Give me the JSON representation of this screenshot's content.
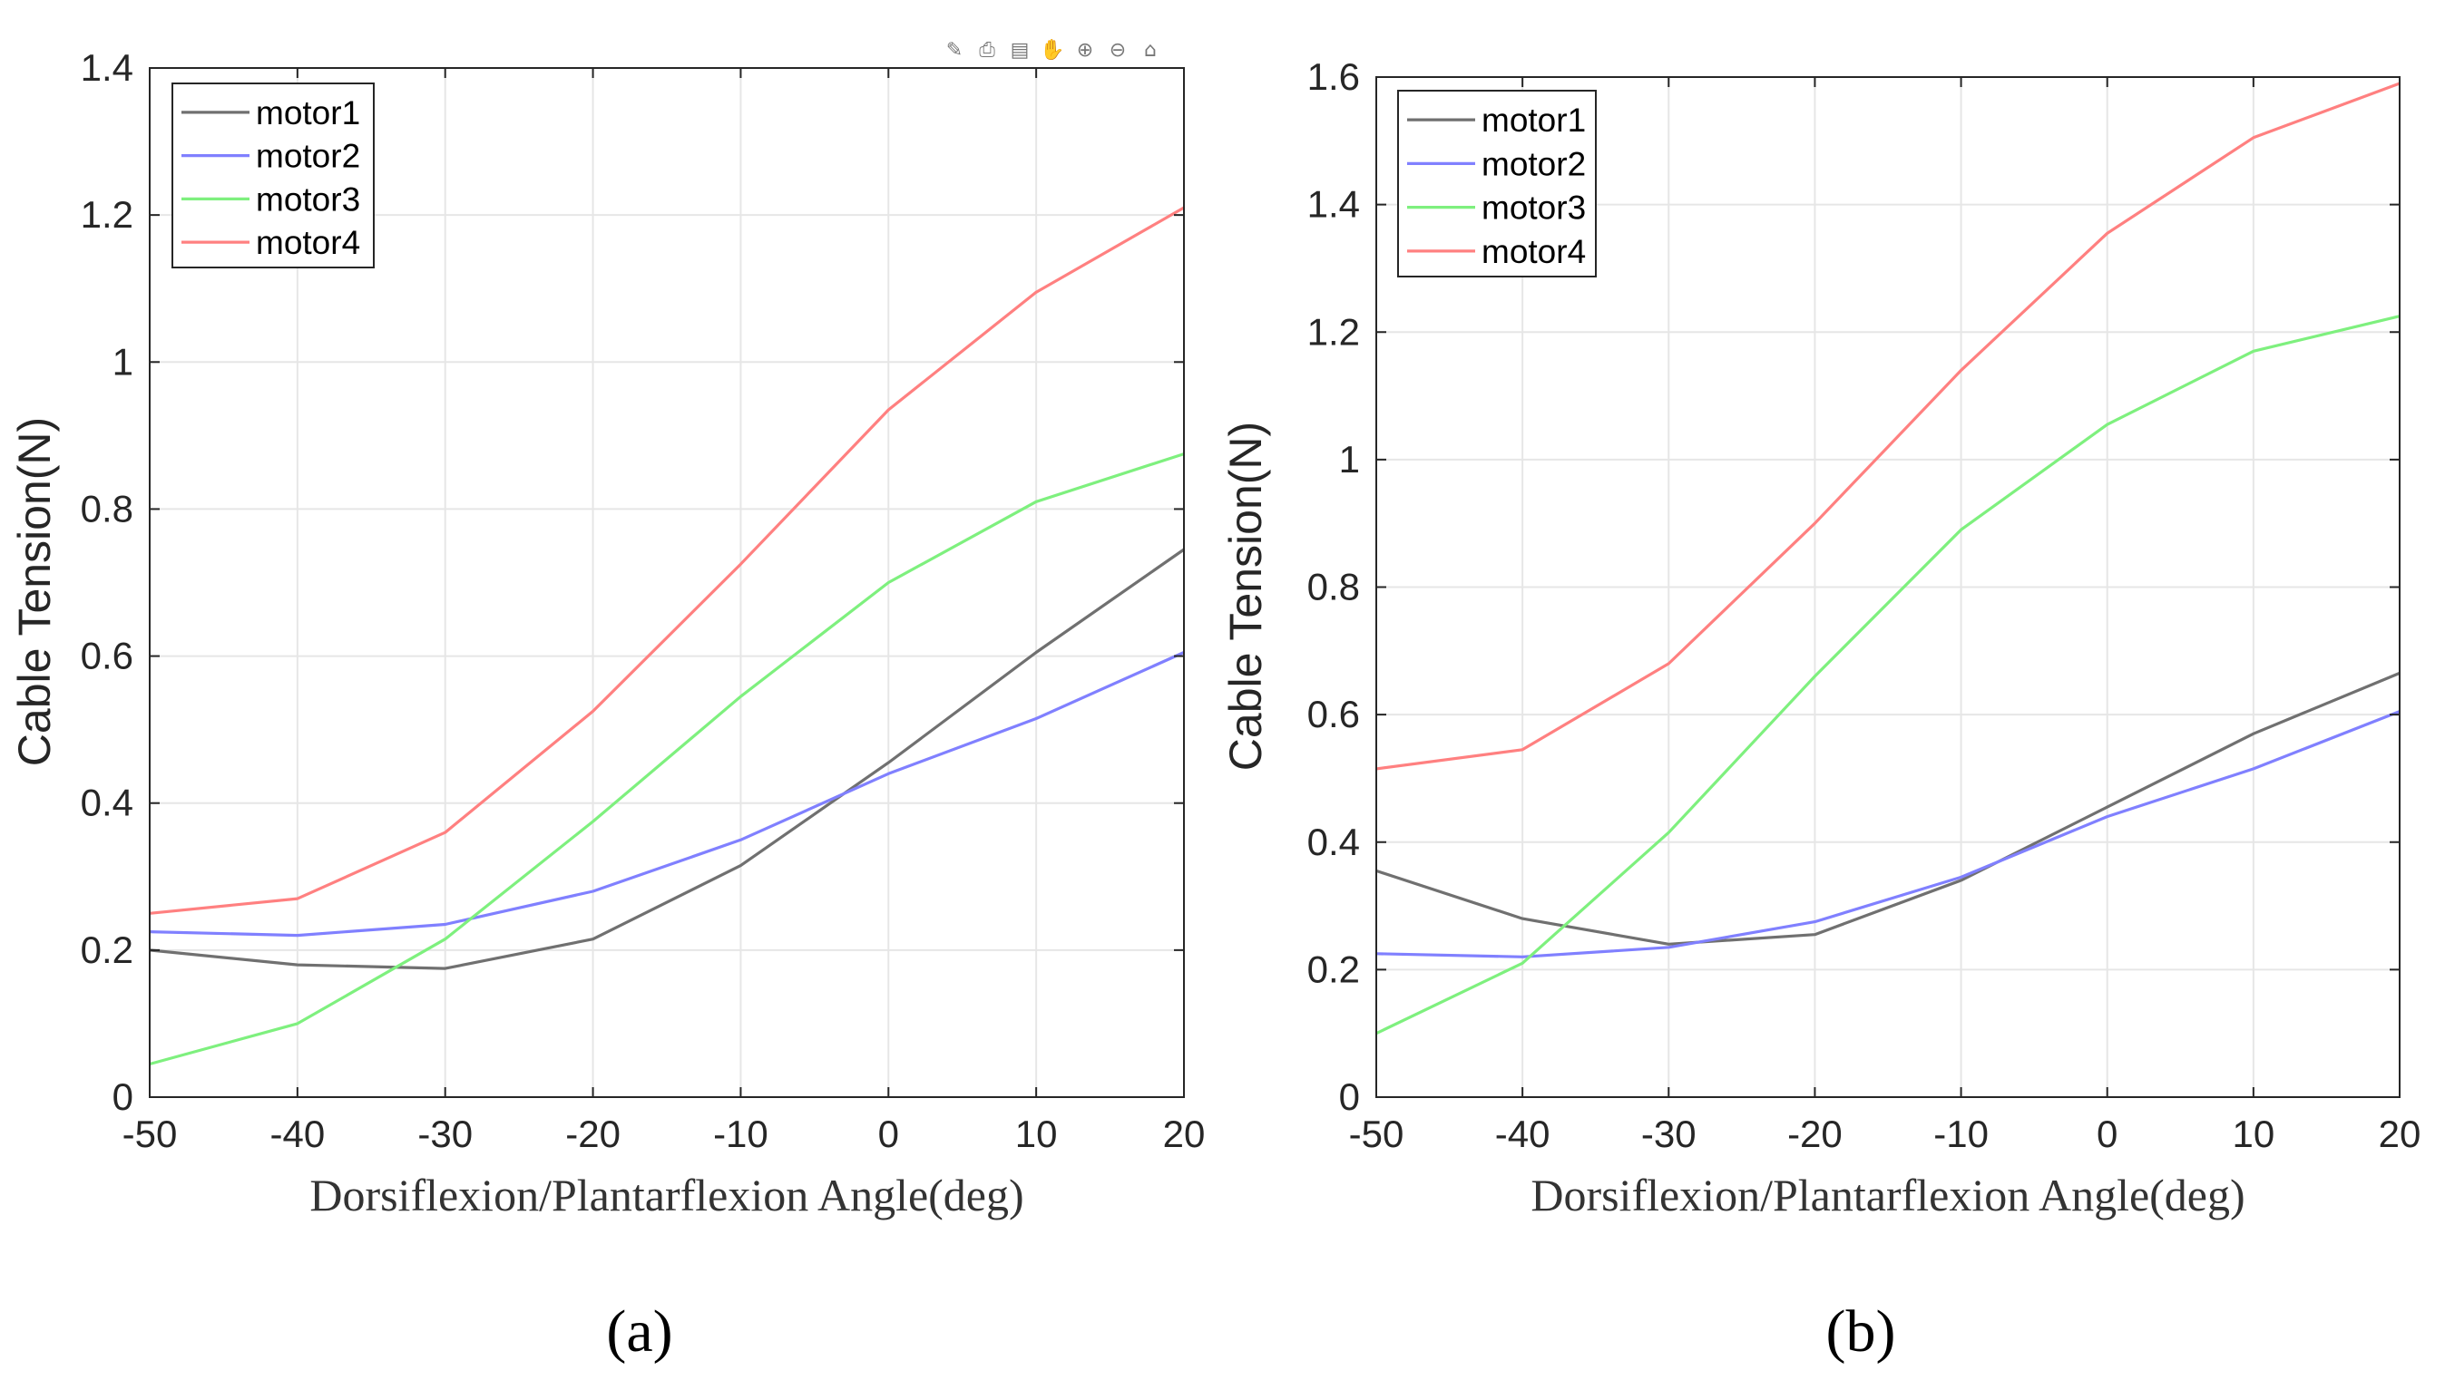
{
  "chart_data": [
    {
      "type": "line",
      "panel_label": "(a)",
      "xlabel": "Dorsiflexion/Plantarflexion Angle(deg)",
      "ylabel": "Cable Tension(N)",
      "x": [
        -50,
        -40,
        -30,
        -20,
        -10,
        0,
        10,
        20
      ],
      "xlim": [
        -50,
        20
      ],
      "ylim": [
        0,
        1.4
      ],
      "xticks": [
        -50,
        -40,
        -30,
        -20,
        -10,
        0,
        10,
        20
      ],
      "xtick_labels": [
        "-50",
        "-40",
        "-30",
        "-20",
        "-10",
        "0",
        "10",
        "20"
      ],
      "yticks": [
        0,
        0.2,
        0.4,
        0.6,
        0.8,
        1,
        1.2,
        1.4
      ],
      "ytick_labels": [
        "0",
        "0.2",
        "0.4",
        "0.6",
        "0.8",
        "1",
        "1.2",
        "1.4"
      ],
      "grid": true,
      "legend_position": "top-left",
      "has_toolbar": true,
      "series": [
        {
          "name": "motor1",
          "color": "#707070",
          "values": [
            0.2,
            0.18,
            0.175,
            0.215,
            0.315,
            0.455,
            0.605,
            0.745
          ]
        },
        {
          "name": "motor2",
          "color": "#8080ff",
          "values": [
            0.225,
            0.22,
            0.235,
            0.28,
            0.35,
            0.44,
            0.515,
            0.605
          ]
        },
        {
          "name": "motor3",
          "color": "#7ef07e",
          "values": [
            0.045,
            0.1,
            0.215,
            0.375,
            0.545,
            0.7,
            0.81,
            0.875
          ]
        },
        {
          "name": "motor4",
          "color": "#ff8080",
          "values": [
            0.25,
            0.27,
            0.36,
            0.525,
            0.725,
            0.935,
            1.095,
            1.21
          ]
        }
      ]
    },
    {
      "type": "line",
      "panel_label": "(b)",
      "xlabel": "Dorsiflexion/Plantarflexion Angle(deg)",
      "ylabel": "Cable Tension(N)",
      "x": [
        -50,
        -40,
        -30,
        -20,
        -10,
        0,
        10,
        20
      ],
      "xlim": [
        -50,
        20
      ],
      "ylim": [
        0,
        1.6
      ],
      "xticks": [
        -50,
        -40,
        -30,
        -20,
        -10,
        0,
        10,
        20
      ],
      "xtick_labels": [
        "-50",
        "-40",
        "-30",
        "-20",
        "-10",
        "0",
        "10",
        "20"
      ],
      "yticks": [
        0,
        0.2,
        0.4,
        0.6,
        0.8,
        1,
        1.2,
        1.4,
        1.6
      ],
      "ytick_labels": [
        "0",
        "0.2",
        "0.4",
        "0.6",
        "0.8",
        "1",
        "1.2",
        "1.4",
        "1.6"
      ],
      "grid": true,
      "legend_position": "top-left",
      "has_toolbar": false,
      "series": [
        {
          "name": "motor1",
          "color": "#707070",
          "values": [
            0.355,
            0.28,
            0.24,
            0.255,
            0.34,
            0.455,
            0.57,
            0.665
          ]
        },
        {
          "name": "motor2",
          "color": "#8080ff",
          "values": [
            0.225,
            0.22,
            0.235,
            0.275,
            0.345,
            0.44,
            0.515,
            0.605
          ]
        },
        {
          "name": "motor3",
          "color": "#7ef07e",
          "values": [
            0.1,
            0.21,
            0.415,
            0.66,
            0.89,
            1.055,
            1.17,
            1.225
          ]
        },
        {
          "name": "motor4",
          "color": "#ff8080",
          "values": [
            0.515,
            0.545,
            0.68,
            0.9,
            1.14,
            1.355,
            1.505,
            1.59
          ]
        }
      ]
    }
  ],
  "toolbar": {
    "icons": [
      "brush-icon",
      "print-icon",
      "edit-icon",
      "pan-icon",
      "zoom-in-icon",
      "zoom-out-icon",
      "home-icon"
    ]
  }
}
